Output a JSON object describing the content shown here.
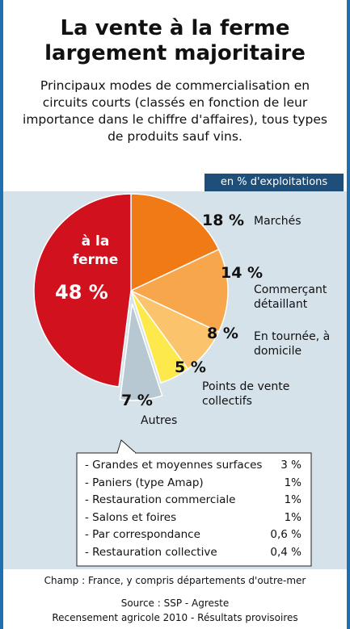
{
  "chart_data": {
    "type": "pie",
    "title": "La vente à la ferme largement majoritaire",
    "subtitle": "Principaux modes de commercialisation en circuits courts (classés en fonction de leur importance dans le chiffre d'affaires), tous types de produits sauf vins.",
    "unit_label": "en % d'exploitations",
    "categories": [
      "Marchés",
      "Commerçant détaillant",
      "En tournée, à domicile",
      "Points de vente collectifs",
      "Autres",
      "à la ferme"
    ],
    "values": [
      18,
      14,
      8,
      5,
      7,
      48
    ],
    "value_labels": [
      "18 %",
      "14 %",
      "8 %",
      "5 %",
      "7 %",
      "48 %"
    ],
    "colors": [
      "#f07a16",
      "#f8a64c",
      "#fbc46c",
      "#fde94c",
      "#b8c8d2",
      "#d1111d"
    ]
  },
  "breakdown": {
    "rows": [
      [
        "- Grandes et moyennes surfaces",
        "3 %"
      ],
      [
        "- Paniers (type Amap)",
        "1%"
      ],
      [
        "- Restauration commerciale",
        "1%"
      ],
      [
        "- Salons et foires",
        "1%"
      ],
      [
        "- Par correspondance",
        "0,6 %"
      ],
      [
        "- Restauration collective",
        "0,4 %"
      ]
    ]
  },
  "footer": {
    "scope": "Champ : France, y compris départements d'outre-mer",
    "source": "Source : SSP - Agreste",
    "census": "Recensement agricole 2010 - Résultats provisoires"
  }
}
